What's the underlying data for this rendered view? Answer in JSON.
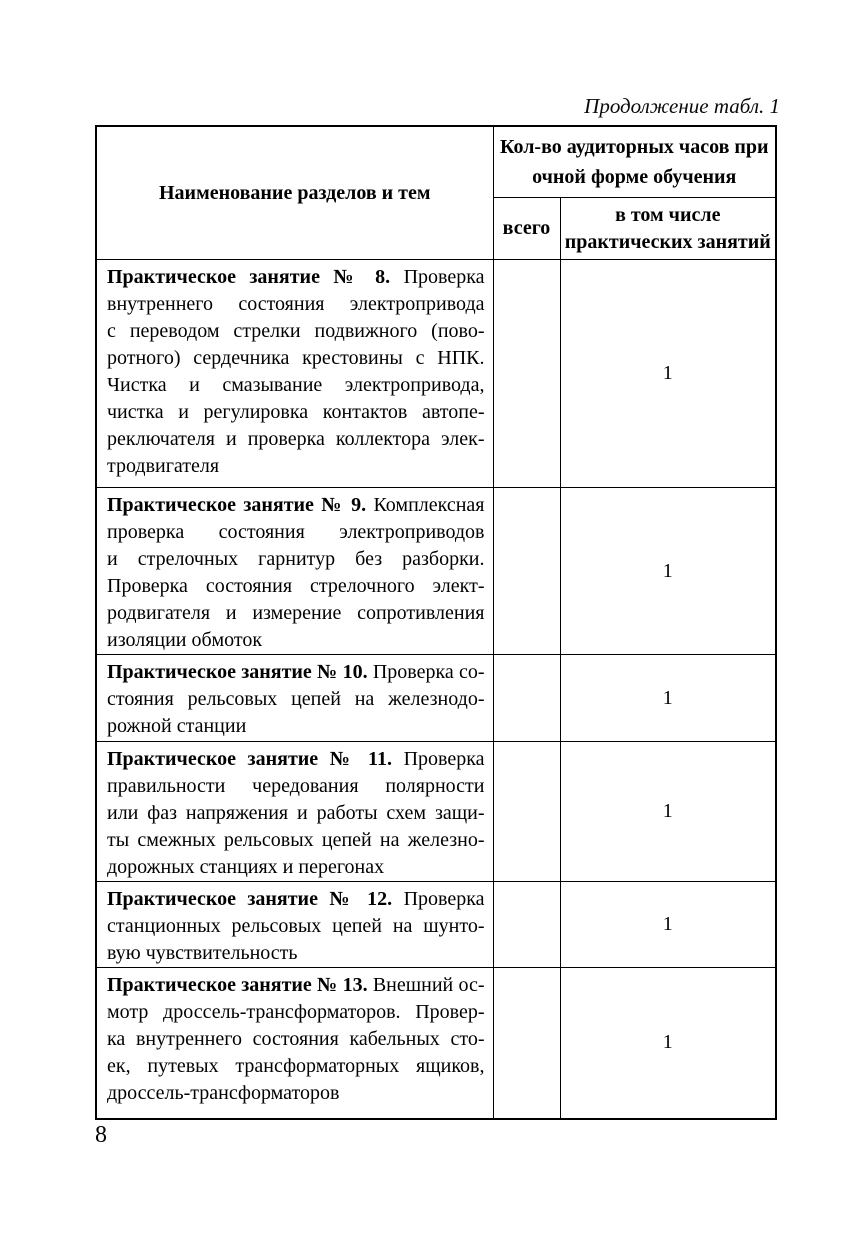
{
  "page": {
    "continuation_caption": "Продолжение табл. 1",
    "page_number": "8"
  },
  "table": {
    "headers": {
      "name_col": "Наименование разделов и тем",
      "hours_group": "Кол-во аудиторных часов при\nочной форме обучения",
      "total_col": "всего",
      "practical_col": "в том числе\nпрактических занятий"
    },
    "rows": [
      {
        "lead": "Практическое занятие № 8.",
        "lines": [
          "Проверка",
          "внутреннего состояния электропривода",
          "с переводом стрелки подвижного (пово-",
          "ротного) сердечника крестовины с НПК.",
          "Чистка и смазывание электропривода,",
          "чистка и регулировка контактов автопе-",
          "реключателя и проверка коллектора элек-",
          "тродвигателя"
        ],
        "total": "",
        "practical": "1"
      },
      {
        "lead": "Практическое занятие № 9.",
        "lines": [
          "Комплексная",
          "проверка состояния электроприводов",
          "и стрелочных гарнитур без разборки.",
          "Проверка состояния стрелочного элект-",
          "родвигателя и измерение сопротивления",
          "изоляции обмоток"
        ],
        "total": "",
        "practical": "1"
      },
      {
        "lead": "Практическое занятие № 10.",
        "lines": [
          "Проверка со-",
          "стояния рельсовых цепей на железнодо-",
          "рожной станции"
        ],
        "total": "",
        "practical": "1"
      },
      {
        "lead": "Практическое занятие № 11.",
        "lines": [
          "Проверка",
          "правильности чередования полярности",
          "или фаз напряжения и работы схем защи-",
          "ты смежных рельсовых цепей на железно-",
          "дорожных станциях и перегонах"
        ],
        "total": "",
        "practical": "1"
      },
      {
        "lead": "Практическое занятие № 12.",
        "lines": [
          "Проверка",
          "станционных рельсовых цепей на шунто-",
          "вую чувствительность"
        ],
        "total": "",
        "practical": "1"
      },
      {
        "lead": "Практическое занятие № 13.",
        "lines": [
          "Внешний ос-",
          "мотр дроссель-трансформаторов. Провер-",
          "ка внутреннего состояния кабельных сто-",
          "ек, путевых трансформаторных ящиков,",
          "дроссель-трансформаторов"
        ],
        "total": "",
        "practical": "1"
      }
    ]
  }
}
